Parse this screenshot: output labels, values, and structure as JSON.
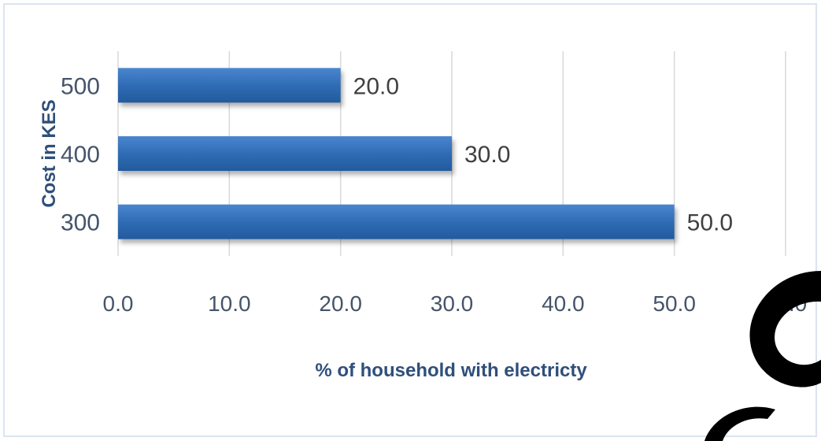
{
  "chart_data": {
    "type": "bar",
    "orientation": "horizontal",
    "categories": [
      "500",
      "400",
      "300"
    ],
    "values": [
      20.0,
      30.0,
      50.0
    ],
    "data_labels": [
      "20.0",
      "30.0",
      "50.0"
    ],
    "xlabel": "% of household with electricty",
    "ylabel": "Cost in KES",
    "xlim": [
      0,
      60
    ],
    "xticks": [
      "0.0",
      "10.0",
      "20.0",
      "30.0",
      "40.0",
      "50.0",
      "60.0"
    ],
    "grid": "vertical",
    "bar_color": "#2f6cb5",
    "legend": "none"
  },
  "decoration": {
    "watermark_color": "#000000"
  }
}
